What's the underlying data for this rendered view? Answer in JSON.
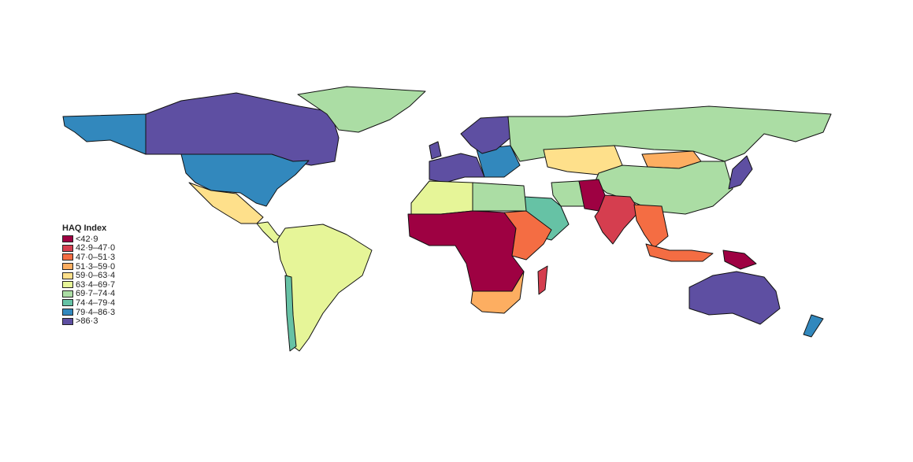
{
  "legend": {
    "title": "HAQ Index",
    "items": [
      {
        "label": "<42·9",
        "color": "#9e0142"
      },
      {
        "label": "42·9–47·0",
        "color": "#d53e4f"
      },
      {
        "label": "47·0–51·3",
        "color": "#f46d43"
      },
      {
        "label": "51·3–59·0",
        "color": "#fdae61"
      },
      {
        "label": "59·0–63·4",
        "color": "#fee08b"
      },
      {
        "label": "63·4–69·7",
        "color": "#e6f598"
      },
      {
        "label": "69·7–74·4",
        "color": "#abdda4"
      },
      {
        "label": "74·4–79·4",
        "color": "#66c2a5"
      },
      {
        "label": "79·4–86·3",
        "color": "#3288bd"
      },
      {
        "label": ">86·3",
        "color": "#5e4fa2"
      }
    ]
  },
  "regions": [
    {
      "name": "Alaska",
      "bin": 8
    },
    {
      "name": "Canada",
      "bin": 9
    },
    {
      "name": "Greenland",
      "bin": 6
    },
    {
      "name": "USA",
      "bin": 8
    },
    {
      "name": "Mexico",
      "bin": 4
    },
    {
      "name": "Central America",
      "bin": 5
    },
    {
      "name": "South America",
      "bin": 5
    },
    {
      "name": "Chile",
      "bin": 7
    },
    {
      "name": "Europe west",
      "bin": 9
    },
    {
      "name": "Europe east",
      "bin": 8
    },
    {
      "name": "Scandinavia",
      "bin": 9
    },
    {
      "name": "Russia",
      "bin": 6
    },
    {
      "name": "Kazakhstan",
      "bin": 4
    },
    {
      "name": "Mongolia",
      "bin": 3
    },
    {
      "name": "China",
      "bin": 6
    },
    {
      "name": "Japan",
      "bin": 9
    },
    {
      "name": "Iran",
      "bin": 6
    },
    {
      "name": "Arabia",
      "bin": 7
    },
    {
      "name": "Afghanistan-Pakistan",
      "bin": 0
    },
    {
      "name": "India",
      "bin": 1
    },
    {
      "name": "North Africa",
      "bin": 5
    },
    {
      "name": "Egypt-Libya",
      "bin": 6
    },
    {
      "name": "Sub-Saharan Africa",
      "bin": 0
    },
    {
      "name": "East Africa",
      "bin": 2
    },
    {
      "name": "Southern Africa",
      "bin": 3
    },
    {
      "name": "Madagascar",
      "bin": 1
    },
    {
      "name": "Southeast Asia",
      "bin": 2
    },
    {
      "name": "Indonesia",
      "bin": 2
    },
    {
      "name": "Papua New Guinea",
      "bin": 0
    },
    {
      "name": "Australia",
      "bin": 9
    },
    {
      "name": "New Zealand",
      "bin": 8
    },
    {
      "name": "UK",
      "bin": 9
    }
  ]
}
